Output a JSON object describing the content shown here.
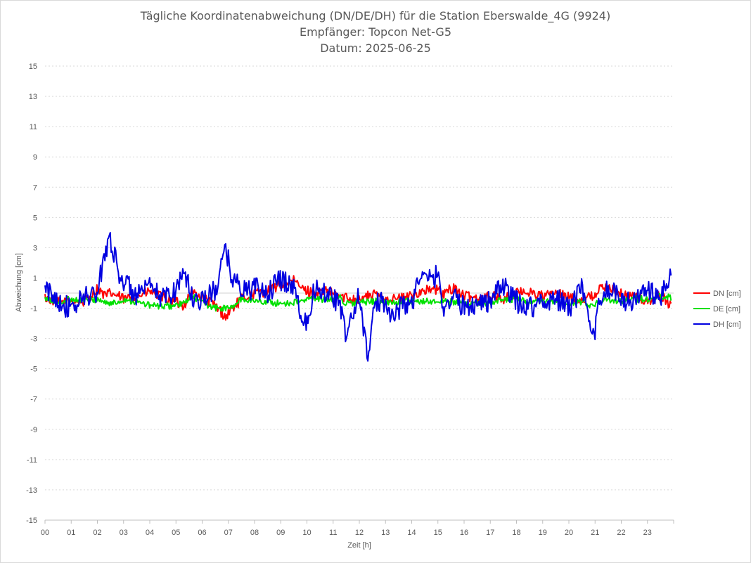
{
  "chart_data": {
    "type": "line",
    "title_lines": [
      "Tägliche Koordinatenabweichung (DN/DE/DH) für die Station Eberswalde_4G (9924)",
      "Empfänger: Topcon Net-G5",
      "Datum: 2025-06-25"
    ],
    "xlabel": "Zeit [h]",
    "ylabel": "Abweichung [cm]",
    "xlim": [
      0,
      24
    ],
    "ylim": [
      -15,
      15
    ],
    "x_ticks": [
      "00",
      "01",
      "02",
      "03",
      "04",
      "05",
      "06",
      "07",
      "08",
      "09",
      "10",
      "11",
      "12",
      "13",
      "14",
      "15",
      "16",
      "17",
      "18",
      "19",
      "20",
      "21",
      "22",
      "23"
    ],
    "y_ticks": [
      15,
      13,
      11,
      9,
      7,
      5,
      3,
      1,
      -1,
      -3,
      -5,
      -7,
      -9,
      -11,
      -13,
      -15
    ],
    "grid": "horizontal dotted",
    "legend_position": "right",
    "x_hours": [
      0.0,
      0.5,
      1.0,
      1.5,
      2.0,
      2.3,
      2.5,
      2.8,
      3.0,
      3.5,
      4.0,
      4.5,
      5.0,
      5.3,
      5.6,
      6.0,
      6.5,
      6.9,
      7.1,
      7.5,
      8.0,
      8.5,
      9.0,
      9.5,
      9.9,
      10.3,
      10.8,
      11.2,
      11.5,
      12.0,
      12.3,
      12.6,
      13.0,
      13.3,
      13.7,
      14.0,
      14.3,
      14.5,
      15.0,
      15.2,
      15.6,
      16.0,
      16.5,
      17.0,
      17.5,
      18.0,
      18.5,
      19.0,
      19.5,
      20.0,
      20.5,
      20.9,
      21.2,
      21.7,
      22.0,
      22.5,
      23.0,
      23.5,
      23.9
    ],
    "series": [
      {
        "name": "DN [cm]",
        "color": "#ff0000",
        "values": [
          -0.3,
          -0.6,
          -0.5,
          -0.6,
          0.3,
          -0.2,
          0.0,
          -0.2,
          -0.4,
          -0.2,
          0.1,
          -0.3,
          -0.6,
          -0.8,
          0.1,
          -0.3,
          -0.8,
          -1.6,
          -1.1,
          -0.4,
          0.0,
          0.1,
          0.6,
          0.8,
          0.2,
          0.0,
          0.1,
          -0.2,
          -0.3,
          -0.4,
          -0.2,
          -0.1,
          -0.3,
          -0.4,
          -0.3,
          -0.2,
          0.1,
          0.2,
          0.2,
          -0.1,
          0.4,
          -0.2,
          -0.3,
          -0.2,
          -0.4,
          0.0,
          0.1,
          -0.2,
          0.0,
          -0.3,
          -0.4,
          -0.2,
          0.3,
          0.3,
          -0.1,
          -0.2,
          -0.6,
          -0.2,
          -0.8
        ]
      },
      {
        "name": "DE [cm]",
        "color": "#00e000",
        "values": [
          -0.4,
          -0.6,
          -0.4,
          -0.5,
          -0.4,
          -0.6,
          -0.7,
          -0.6,
          -0.4,
          -0.6,
          -0.8,
          -0.9,
          -0.8,
          -0.7,
          -0.2,
          -0.6,
          -1.0,
          -1.0,
          -1.0,
          -0.4,
          -0.5,
          -0.6,
          -0.7,
          -0.6,
          -0.5,
          -0.3,
          -0.5,
          -0.2,
          -0.7,
          -0.6,
          -0.6,
          -0.5,
          -0.7,
          -0.6,
          -0.5,
          -0.6,
          -0.6,
          -0.5,
          -0.6,
          -0.5,
          -0.6,
          -0.6,
          -0.7,
          -0.6,
          -0.5,
          -0.4,
          -0.6,
          -0.6,
          -0.5,
          -0.7,
          -0.6,
          -0.8,
          -0.5,
          -0.5,
          -0.5,
          -0.4,
          -0.4,
          -0.2,
          -0.3
        ]
      },
      {
        "name": "DH [cm]",
        "color": "#0000e0",
        "values": [
          0.2,
          -0.4,
          -1.2,
          -0.2,
          -0.1,
          3.0,
          3.6,
          1.4,
          0.8,
          -0.2,
          0.3,
          -0.3,
          0.2,
          1.6,
          -0.3,
          -0.4,
          0.1,
          2.9,
          1.3,
          0.2,
          0.3,
          0.0,
          0.9,
          0.5,
          -2.2,
          0.3,
          0.1,
          -0.6,
          -2.8,
          -0.1,
          -4.2,
          -0.8,
          -0.5,
          -1.6,
          -0.6,
          -0.8,
          1.3,
          0.8,
          1.2,
          -0.9,
          -0.2,
          -1.0,
          -0.6,
          -0.5,
          0.5,
          -0.6,
          -0.9,
          -0.6,
          -0.3,
          -1.0,
          0.3,
          -3.4,
          -0.1,
          0.2,
          -0.6,
          -0.5,
          0.2,
          -0.4,
          1.1
        ]
      }
    ]
  }
}
